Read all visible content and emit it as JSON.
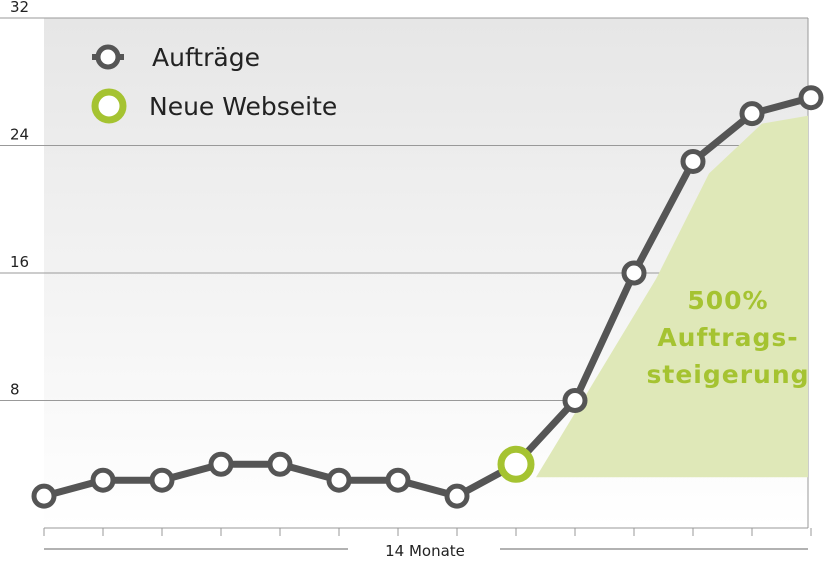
{
  "chart_data": {
    "type": "line",
    "x": [
      1,
      2,
      3,
      4,
      5,
      6,
      7,
      8,
      9,
      10,
      11,
      12,
      13,
      14
    ],
    "series": [
      {
        "name": "Aufträge",
        "values": [
          2,
          3,
          3,
          4,
          4,
          3,
          3,
          2,
          4,
          8,
          16,
          23,
          26,
          27
        ]
      }
    ],
    "highlight": {
      "name": "Neue Webseite",
      "x": 9,
      "y": 4
    },
    "xlabel": "14 Monate",
    "ylabel": "",
    "ylim": [
      0,
      32
    ],
    "yticks": [
      "8",
      "16",
      "24",
      "32"
    ],
    "grid": true,
    "legend": "top-left",
    "annotation": [
      "500%",
      "Auftrags-",
      "steigerung"
    ],
    "colors": {
      "line": "#555555",
      "marker_fill": "#ffffff",
      "highlight": "#a5c331",
      "area": "#dfe8b8",
      "grid": "#999999",
      "background_top": "#e9e9e9",
      "background_bottom": "#ffffff"
    }
  }
}
